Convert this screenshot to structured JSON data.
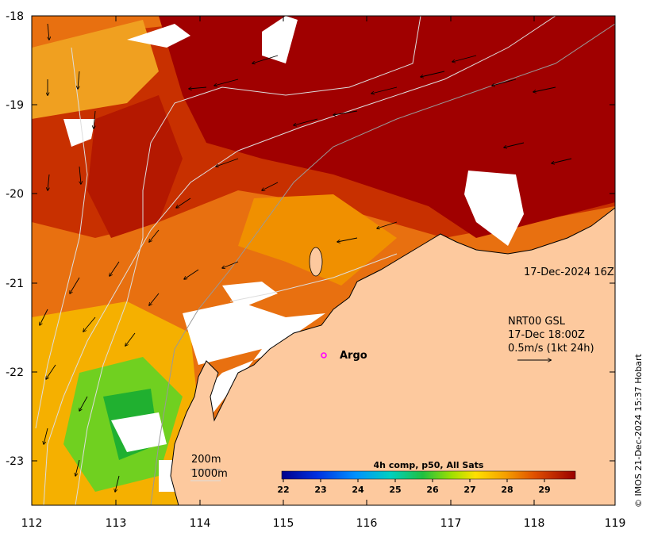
{
  "map": {
    "lon_range": [
      112,
      119
    ],
    "lat_range": [
      -23.5,
      -18
    ],
    "x_ticks": [
      "112",
      "113",
      "114",
      "115",
      "116",
      "117",
      "118",
      "119"
    ],
    "y_ticks": [
      "-18",
      "-19",
      "-20",
      "-21",
      "-22",
      "-23"
    ],
    "timestamp": "17-Dec-2024 16Z",
    "current_source": "NRT00 GSL",
    "current_time": "17-Dec 18:00Z",
    "current_scale": "0.5m/s (1kt 24h)",
    "argo_label": "Argo",
    "depth_200": "200m",
    "depth_1000": "1000m",
    "credit": "© IMOS 21-Dec-2024 15:37 Hobart"
  },
  "colorbar": {
    "title": "4h comp, p50, All Sats",
    "ticks": [
      "22",
      "23",
      "24",
      "25",
      "26",
      "27",
      "28",
      "29"
    ],
    "range": [
      22,
      29.8
    ]
  },
  "colors": {
    "land": "#fdc99e",
    "sst_hot": "#a00000",
    "sst_warm": "#e06000",
    "sst_mid": "#f5a000",
    "sst_cool": "#40c000",
    "argo": "#ff00ff"
  }
}
